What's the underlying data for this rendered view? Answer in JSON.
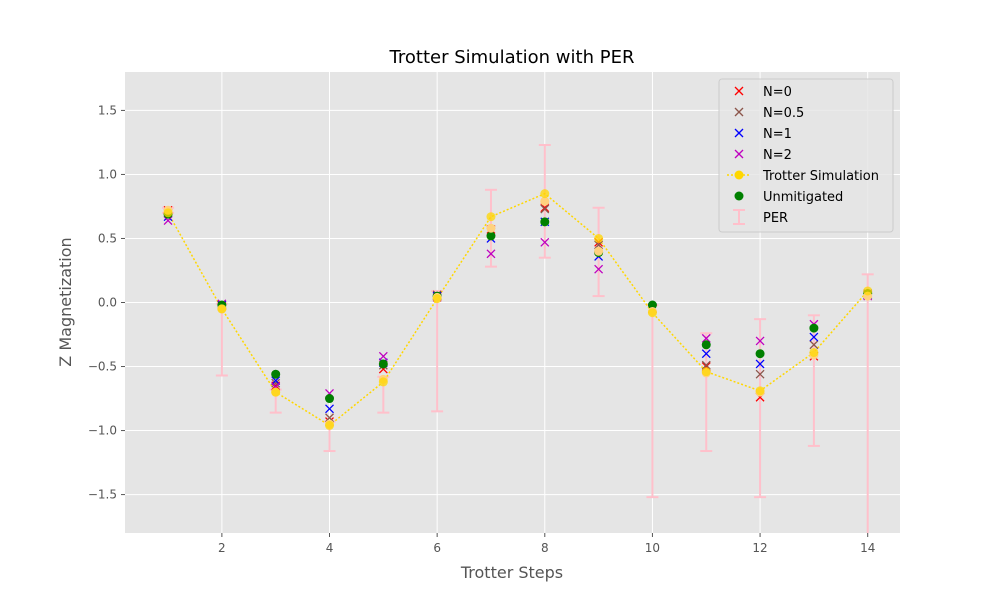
{
  "chart_data": {
    "type": "scatter",
    "title": "Trotter Simulation with PER",
    "xlabel": "Trotter Steps",
    "ylabel": "Z Magnetization",
    "xlim": [
      0.2,
      14.6
    ],
    "ylim": [
      -1.8,
      1.8
    ],
    "xticks": [
      2,
      4,
      6,
      8,
      10,
      12,
      14
    ],
    "yticks": [
      -1.5,
      -1.0,
      -0.5,
      0.0,
      0.5,
      1.0,
      1.5
    ],
    "grid": true,
    "legend_position": "top-right",
    "x": [
      1,
      2,
      3,
      4,
      5,
      6,
      7,
      8,
      9,
      10,
      11,
      12,
      13,
      14
    ],
    "series": [
      {
        "name": "N=0",
        "marker": "x",
        "color": "#ff0000",
        "values": [
          0.72,
          -0.03,
          -0.65,
          -0.93,
          -0.52,
          0.05,
          0.57,
          0.74,
          0.47,
          -0.05,
          -0.5,
          -0.74,
          -0.42,
          0.06
        ]
      },
      {
        "name": "N=0.5",
        "marker": "x",
        "color": "#8c564b",
        "values": [
          0.7,
          -0.02,
          -0.63,
          -0.9,
          -0.49,
          0.06,
          0.55,
          0.73,
          0.45,
          -0.05,
          -0.49,
          -0.56,
          -0.33,
          0.07
        ]
      },
      {
        "name": "N=1",
        "marker": "x",
        "color": "#0000ff",
        "values": [
          0.67,
          -0.02,
          -0.61,
          -0.83,
          -0.47,
          0.05,
          0.5,
          0.63,
          0.36,
          -0.04,
          -0.4,
          -0.48,
          -0.27,
          0.06
        ]
      },
      {
        "name": "N=2",
        "marker": "x",
        "color": "#bf00bf",
        "values": [
          0.64,
          -0.01,
          -0.66,
          -0.71,
          -0.42,
          0.04,
          0.38,
          0.47,
          0.26,
          -0.04,
          -0.28,
          -0.3,
          -0.17,
          0.05
        ]
      },
      {
        "name": "Trotter Simulation",
        "marker": "line-dot",
        "color": "#ffd700",
        "values": [
          0.7,
          -0.05,
          -0.7,
          -0.96,
          -0.62,
          0.03,
          0.67,
          0.85,
          0.5,
          -0.08,
          -0.54,
          -0.69,
          -0.39,
          0.09
        ]
      },
      {
        "name": "Unmitigated",
        "marker": "dot",
        "color": "#008000",
        "values": [
          0.69,
          -0.02,
          -0.56,
          -0.75,
          -0.48,
          0.05,
          0.52,
          0.63,
          0.39,
          -0.02,
          -0.33,
          -0.4,
          -0.2,
          0.07
        ]
      },
      {
        "name": "PER",
        "marker": "errorbar",
        "color": "#ffc0cb",
        "values": [
          0.72,
          -0.05,
          -0.7,
          -0.95,
          -0.6,
          0.04,
          0.58,
          0.79,
          0.4,
          -0.07,
          -0.55,
          -0.7,
          -0.41,
          0.05
        ],
        "error_low": [
          0.7,
          -0.57,
          -0.86,
          -1.16,
          -0.86,
          -0.85,
          0.28,
          0.35,
          0.05,
          -1.52,
          -1.16,
          -1.52,
          -1.12,
          -1.85
        ],
        "error_high": [
          0.74,
          -0.01,
          -0.68,
          -0.93,
          -0.58,
          0.09,
          0.88,
          1.23,
          0.74,
          -0.02,
          -0.24,
          -0.13,
          -0.1,
          0.22
        ]
      }
    ]
  }
}
